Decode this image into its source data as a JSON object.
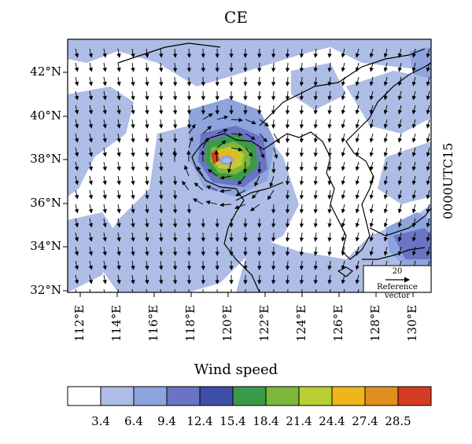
{
  "map": {
    "title": "CE",
    "time_label": "0000UTC15",
    "lat_labels": [
      "42°N",
      "40°N",
      "38°N",
      "36°N",
      "34°N",
      "32°N"
    ],
    "lon_labels": [
      "112°E",
      "114°E",
      "116°E",
      "118°E",
      "120°E",
      "122°E",
      "124°E",
      "126°E",
      "128°E",
      "130°E"
    ],
    "reference_vector": {
      "value": "20",
      "label": "Reference vector"
    }
  },
  "colorbar": {
    "title": "Wind speed",
    "colors": [
      "#ffffff",
      "#aebde6",
      "#8da4dc",
      "#6b74c4",
      "#3f4ea6",
      "#3b9a4a",
      "#7fb63c",
      "#b9cf34",
      "#eeb61b",
      "#e08e1f",
      "#d43d22"
    ],
    "tick_labels": [
      "3.4",
      "6.4",
      "9.4",
      "12.4",
      "15.4",
      "18.4",
      "21.4",
      "24.4",
      "27.4",
      "28.5"
    ]
  }
}
